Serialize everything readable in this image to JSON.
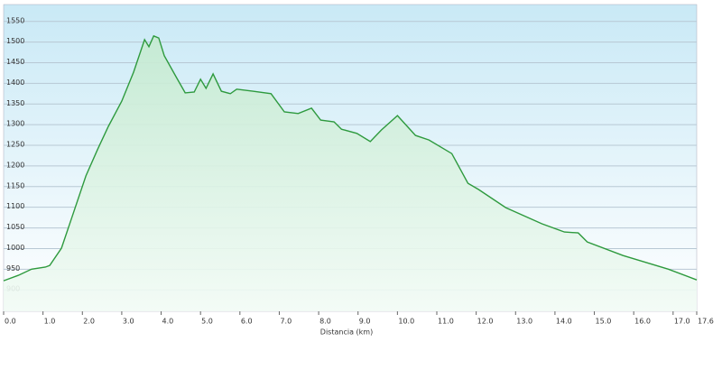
{
  "chart_data": {
    "type": "line",
    "x_label": "Distancia (km)",
    "xlim": [
      0,
      17.6
    ],
    "ylim": [
      848,
      1591
    ],
    "xticks": [
      {
        "value": 0,
        "label": "0.0"
      },
      {
        "value": 1,
        "label": "1.0"
      },
      {
        "value": 2,
        "label": "2.0"
      },
      {
        "value": 3,
        "label": "3.0"
      },
      {
        "value": 4,
        "label": "4.0"
      },
      {
        "value": 5,
        "label": "5.0"
      },
      {
        "value": 6,
        "label": "6.0"
      },
      {
        "value": 7,
        "label": "7.0"
      },
      {
        "value": 8,
        "label": "8.0"
      },
      {
        "value": 9,
        "label": "9.0"
      },
      {
        "value": 10,
        "label": "10.0"
      },
      {
        "value": 11,
        "label": "11.0"
      },
      {
        "value": 12,
        "label": "12.0"
      },
      {
        "value": 13,
        "label": "13.0"
      },
      {
        "value": 14,
        "label": "14.0"
      },
      {
        "value": 15,
        "label": "15.0"
      },
      {
        "value": 16,
        "label": "16.0"
      },
      {
        "value": 17,
        "label": "17.0"
      },
      17.6
    ],
    "yticks": [
      900,
      950,
      1000,
      1050,
      1100,
      1150,
      1200,
      1250,
      1300,
      1350,
      1400,
      1450,
      1500,
      1550
    ],
    "grid": true,
    "color": "#2e9a3e",
    "x": [
      0,
      0.37,
      0.71,
      1.06,
      1.17,
      1.47,
      1.74,
      2.09,
      2.39,
      2.66,
      3.0,
      3.3,
      3.58,
      3.69,
      3.81,
      3.94,
      4.08,
      4.38,
      4.61,
      4.84,
      5.0,
      5.14,
      5.32,
      5.53,
      5.76,
      5.92,
      6.33,
      6.79,
      7.13,
      7.48,
      7.82,
      8.05,
      8.39,
      8.58,
      8.97,
      9.31,
      9.59,
      10.0,
      10.46,
      10.8,
      11.38,
      11.79,
      12.06,
      12.75,
      13.67,
      14.24,
      14.59,
      14.82,
      15.73,
      16.88,
      17.6
    ],
    "values": [
      922,
      935,
      950,
      955,
      959,
      1001,
      1077,
      1176,
      1241,
      1296,
      1357,
      1427,
      1506,
      1489,
      1515,
      1510,
      1467,
      1416,
      1377,
      1379,
      1410,
      1388,
      1423,
      1381,
      1375,
      1386,
      1381,
      1375,
      1331,
      1327,
      1340,
      1311,
      1307,
      1289,
      1279,
      1259,
      1287,
      1322,
      1274,
      1263,
      1230,
      1158,
      1143,
      1099,
      1060,
      1040,
      1038,
      1016,
      983,
      950,
      924
    ]
  }
}
